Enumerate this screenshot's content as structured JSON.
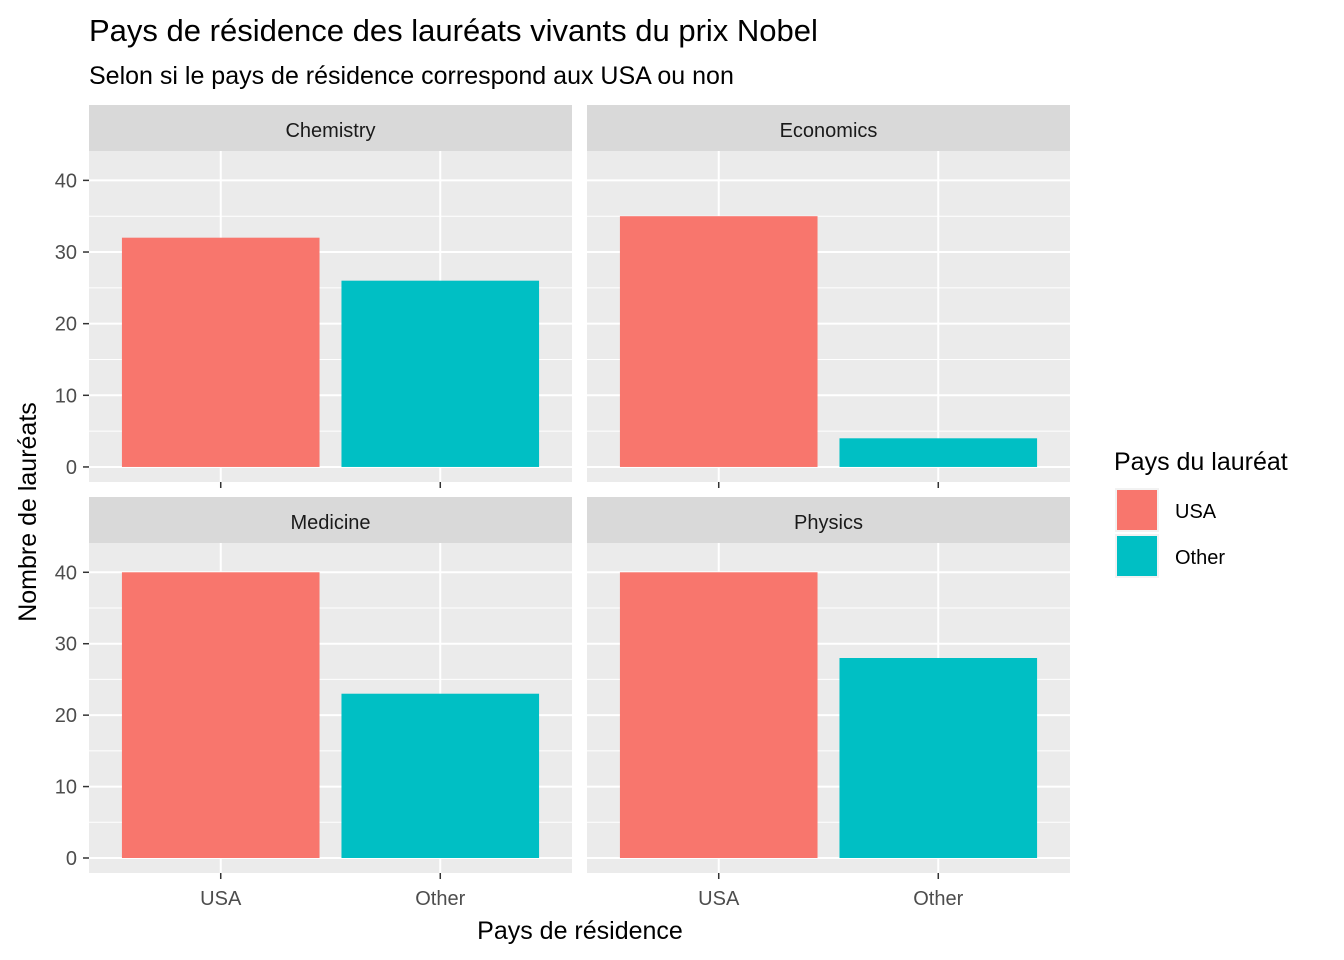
{
  "chart_data": {
    "type": "bar",
    "title": "Pays de résidence des lauréats vivants du prix Nobel",
    "subtitle": "Selon si le pays de résidence correspond aux USA ou non",
    "xlabel": "Pays de résidence",
    "ylabel": "Nombre de lauréats",
    "categories": [
      "USA",
      "Other"
    ],
    "ylim": [
      0,
      42
    ],
    "yticks": [
      0,
      10,
      20,
      30,
      40
    ],
    "grid": true,
    "legend": {
      "title": "Pays du lauréat",
      "position": "right",
      "entries": [
        "USA",
        "Other"
      ]
    },
    "colors": {
      "USA": "#F8766D",
      "Other": "#00BFC4"
    },
    "facets": [
      {
        "name": "Chemistry",
        "values": [
          32,
          26
        ]
      },
      {
        "name": "Economics",
        "values": [
          35,
          4
        ]
      },
      {
        "name": "Medicine",
        "values": [
          40,
          23
        ]
      },
      {
        "name": "Physics",
        "values": [
          40,
          28
        ]
      }
    ]
  }
}
